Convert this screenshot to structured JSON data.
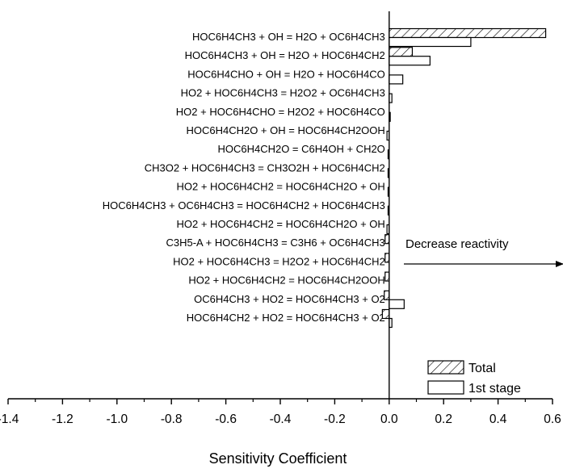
{
  "chart_data": {
    "type": "bar",
    "orientation": "horizontal",
    "categories": [
      "HOC6H4CH3 + OH = H2O + OC6H4CH3",
      "HOC6H4CH3 + OH = H2O + HOC6H4CH2",
      "HOC6H4CHO + OH = H2O + HOC6H4CO",
      "HO2 + HOC6H4CH3 = H2O2 + OC6H4CH3",
      "HO2 + HOC6H4CHO = H2O2 + HOC6H4CO",
      "HOC6H4CH2O + OH = HOC6H4CH2OOH",
      "HOC6H4CH2O = C6H4OH + CH2O",
      "CH3O2 + HOC6H4CH3 = CH3O2H + HOC6H4CH2",
      "HO2 + HOC6H4CH2 = HOC6H4CH2O + OH",
      "HOC6H4CH3 + OC6H4CH3 = HOC6H4CH2 + HOC6H4CH3",
      "HO2 + HOC6H4CH2 = HOC6H4CH2O + OH",
      "C3H5-A + HOC6H4CH3 = C3H6 + OC6H4CH3",
      "HO2 + HOC6H4CH3 = H2O2 + HOC6H4CH2",
      "HO2 + HOC6H4CH2 = HOC6H4CH2OOH",
      "OC6H4CH3 + HO2 = HOC6H4CH3 + O2",
      "HOC6H4CH2 + HO2 = HOC6H4CH3 + O2"
    ],
    "series": [
      {
        "name": "Total",
        "pattern": "hatched",
        "values": [
          0.575,
          0.085,
          0.0,
          0.0,
          0.0,
          0.0,
          0.0,
          0.0,
          0.0,
          0.0,
          0.0,
          -0.015,
          -0.015,
          -0.015,
          -0.018,
          -0.025
        ]
      },
      {
        "name": "1st stage",
        "pattern": "open",
        "values": [
          0.3,
          0.15,
          0.05,
          0.01,
          0.004,
          -0.008,
          -0.004,
          -0.004,
          -0.004,
          -0.004,
          -0.008,
          0.0,
          0.0,
          0.0,
          0.055,
          0.01
        ]
      }
    ],
    "xlabel": "Sensitivity Coefficient",
    "xlim": [
      -1.4,
      0.6
    ],
    "xticks": [
      "-1.4",
      "-1.2",
      "-1.0",
      "-0.8",
      "-0.6",
      "-0.4",
      "-0.2",
      "0.0",
      "0.2",
      "0.4",
      "0.6"
    ],
    "annotation": "Decrease reactivity",
    "legend_position": "bottom-right",
    "grid": false
  }
}
